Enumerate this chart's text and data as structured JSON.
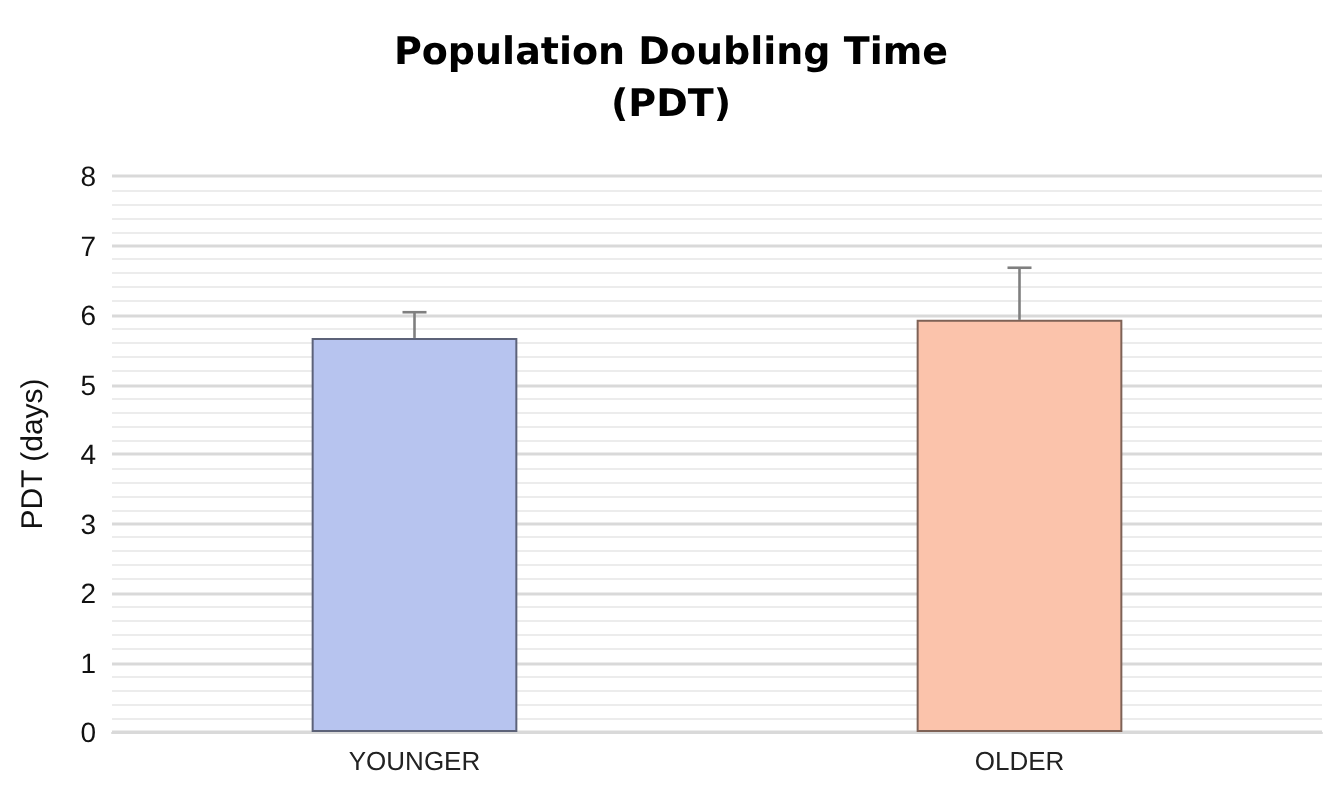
{
  "chart_data": {
    "type": "bar",
    "title": "Population Doubling Time\n(PDT)",
    "ylabel": "PDT (days)",
    "categories": [
      "YOUNGER",
      "OLDER"
    ],
    "values": [
      5.67,
      5.93
    ],
    "colors": [
      "#b7c4ef",
      "#fbc3ab"
    ],
    "errors": [
      [
        5.67,
        6.04
      ],
      [
        5.93,
        6.68
      ]
    ],
    "ylim": [
      0,
      8
    ],
    "yticks": [
      0,
      1,
      2,
      3,
      4,
      5,
      6,
      7,
      8
    ],
    "grid": true
  }
}
